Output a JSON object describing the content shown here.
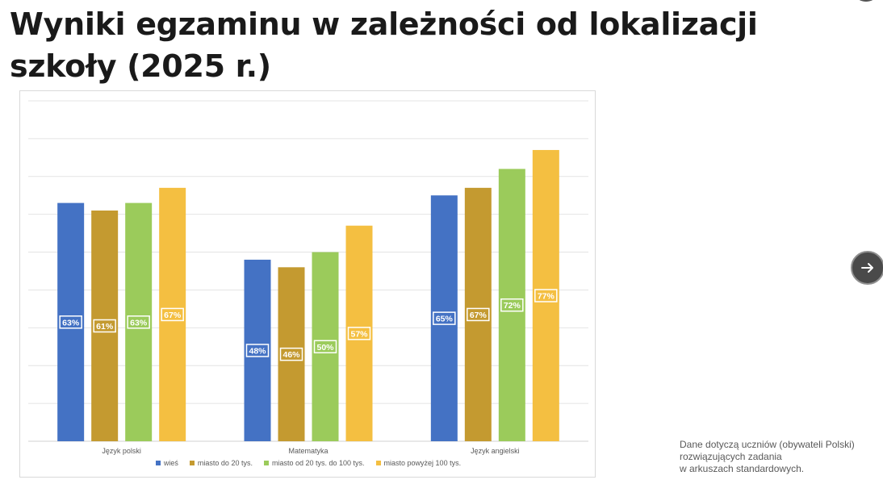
{
  "slide": {
    "title": "Wyniki egzaminu w zależności od lokalizacji szkoły (2025 r.)",
    "note_lines": [
      "Dane dotyczą uczniów (obywateli Polski)",
      "rozwiązujących zadania",
      "w arkuszach standardowych."
    ],
    "next_icon": "arrow-right-icon"
  },
  "chart_data": {
    "type": "bar",
    "title": "",
    "xlabel": "",
    "ylabel": "",
    "ylim": [
      0,
      90
    ],
    "grid": true,
    "legend_position": "bottom",
    "categories": [
      "Język polski",
      "Matematyka",
      "Język angielski"
    ],
    "series": [
      {
        "name": "wieś",
        "color": "#4472C4",
        "values": [
          63,
          48,
          65
        ],
        "labels": [
          "63%",
          "48%",
          "65%"
        ]
      },
      {
        "name": "miasto do 20 tys.",
        "color": "#C49A30",
        "values": [
          61,
          46,
          67
        ],
        "labels": [
          "61%",
          "46%",
          "67%"
        ]
      },
      {
        "name": "miasto od 20 tys. do 100 tys.",
        "color": "#9BCB5B",
        "values": [
          63,
          50,
          72
        ],
        "labels": [
          "63%",
          "50%",
          "72%"
        ]
      },
      {
        "name": "miasto powyżej 100 tys.",
        "color": "#F4BF41",
        "values": [
          67,
          57,
          77
        ],
        "labels": [
          "67%",
          "57%",
          "77%"
        ]
      }
    ]
  }
}
